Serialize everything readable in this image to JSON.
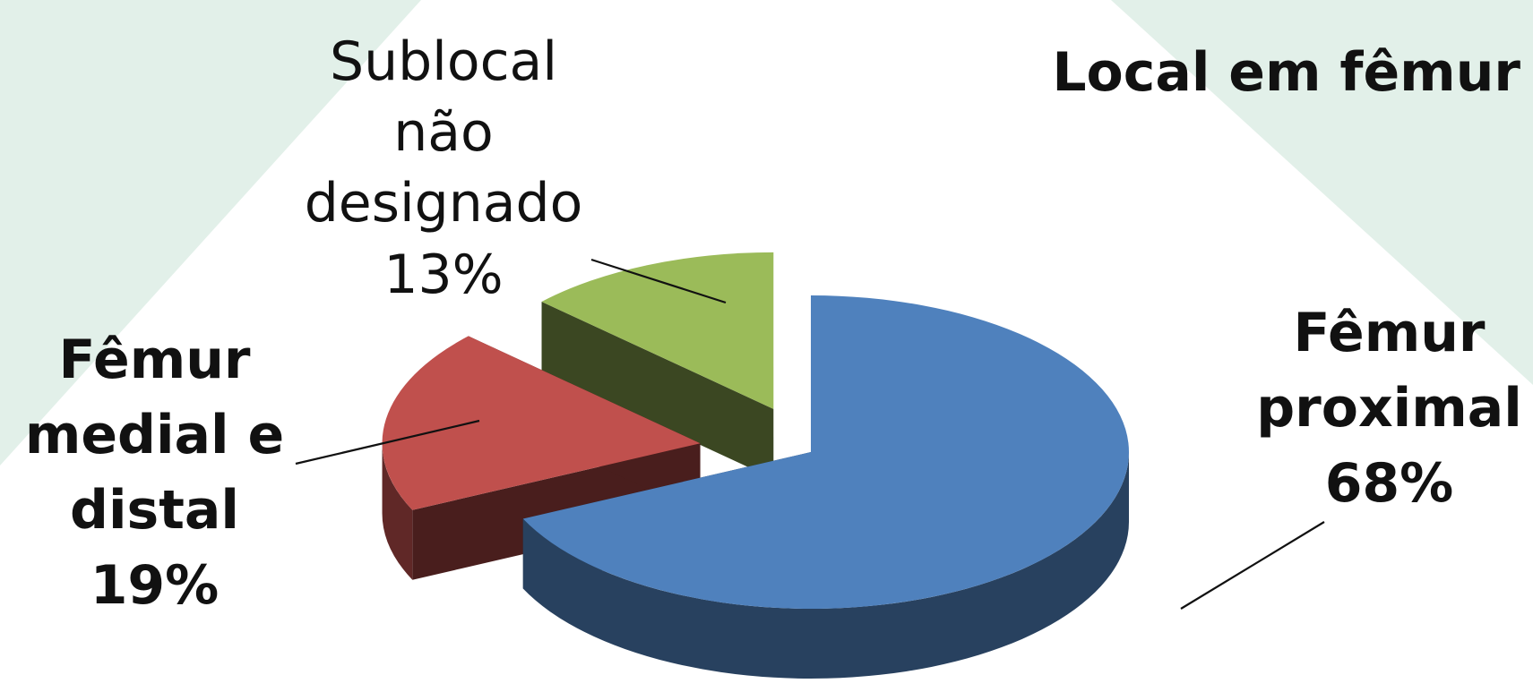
{
  "colors": {
    "proximal": "#4F81BD",
    "medial_distal": "#C0504D",
    "nao_designado": "#9BBB59",
    "background_band": "#E3F1EA"
  },
  "chart_data": {
    "type": "pie",
    "style": "3d-exploded",
    "title": "Local em fêmur",
    "slices": [
      {
        "label_lines": [
          "Fêmur",
          "proximal"
        ],
        "value": 68,
        "value_label": "68%",
        "color": "#4F81BD"
      },
      {
        "label_lines": [
          "Fêmur",
          "medial e",
          "distal"
        ],
        "value": 19,
        "value_label": "19%",
        "color": "#C0504D"
      },
      {
        "label_lines": [
          "Sublocal",
          "não",
          "designado"
        ],
        "value": 13,
        "value_label": "13%",
        "color": "#9BBB59"
      }
    ],
    "legend": "none",
    "data_labels": "category and percentage, outside with leader lines"
  }
}
